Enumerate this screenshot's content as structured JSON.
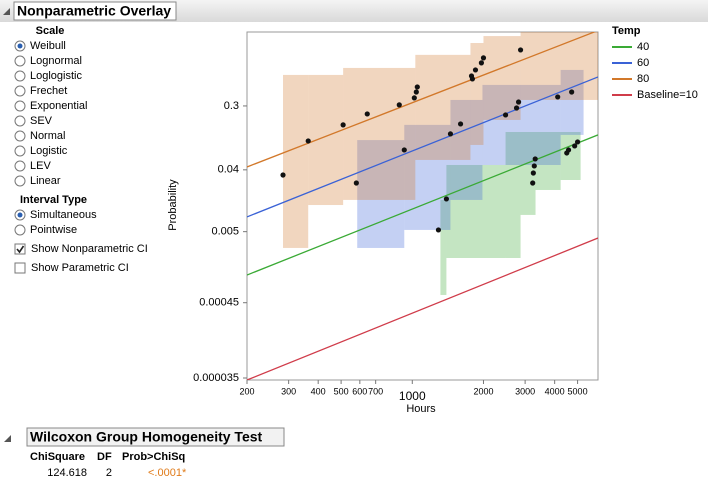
{
  "header": {
    "title": "Nonparametric Overlay"
  },
  "scale": {
    "title": "Scale",
    "options": [
      "Weibull",
      "Lognormal",
      "Loglogistic",
      "Frechet",
      "Exponential",
      "SEV",
      "Normal",
      "Logistic",
      "LEV",
      "Linear"
    ],
    "selected": 0
  },
  "interval_type": {
    "title": "Interval Type",
    "options": [
      "Simultaneous",
      "Pointwise"
    ],
    "selected": 0
  },
  "checkboxes": [
    {
      "label": "Show Nonparametric CI",
      "checked": true
    },
    {
      "label": "Show Parametric CI",
      "checked": false
    }
  ],
  "chart_data": {
    "type": "probability",
    "x_label": "Hours",
    "y_label": "Probability",
    "legend_title": "Temp",
    "xscale": "log",
    "yscale": "weibull",
    "xlim": [
      200,
      6100
    ],
    "ylim": [
      3.27e-05,
      0.9875
    ],
    "xticks": [
      200,
      300,
      400,
      500,
      600,
      700,
      1000,
      2000,
      3000,
      4000,
      5000
    ],
    "yticks": [
      3.5e-05,
      0.00045,
      0.005,
      0.04,
      0.3
    ],
    "series": [
      {
        "name": "40",
        "color": "#3aaa35",
        "points": {
          "x": [
            1290,
            3230,
            3250,
            3280,
            3310,
            4500,
            4580,
            4860,
            5000
          ],
          "y": [
            0.0053,
            0.0258,
            0.036,
            0.0455,
            0.0574,
            0.0698,
            0.077,
            0.0877,
            0.0998
          ]
        },
        "fit": {
          "x": [
            200,
            6100
          ],
          "y": [
            0.00115,
            0.125
          ]
        },
        "band": {
          "edges": [
            1315,
            1394,
            2480,
            2870,
            3320,
            4240,
            5150
          ],
          "lower": [
            0.000585,
            0.00205,
            0.00205,
            0.0088,
            0.0204,
            0.0285
          ],
          "upper": [
            0.0146,
            0.047,
            0.137,
            0.137,
            0.137,
            0.137
          ]
        }
      },
      {
        "name": "60",
        "color": "#3a62d6",
        "points": {
          "x": [
            580,
            925,
            1394,
            1450,
            1600,
            2480,
            2760,
            2815,
            4120,
            4720
          ],
          "y": [
            0.0258,
            0.077,
            0.0151,
            0.129,
            0.176,
            0.231,
            0.283,
            0.335,
            0.384,
            0.436
          ]
        },
        "fit": {
          "x": [
            200,
            6100
          ],
          "y": [
            0.00823,
            0.615
          ]
        },
        "band": {
          "edges": [
            585,
            925,
            1450,
            1980,
            4240,
            5300
          ],
          "lower": [
            0.00288,
            0.0053,
            0.0146,
            0.047,
            0.125
          ],
          "upper": [
            0.106,
            0.171,
            0.354,
            0.517,
            0.702
          ]
        }
      },
      {
        "name": "80",
        "color": "#d2782a",
        "points": {
          "x": [
            284,
            363,
            510,
            645,
            881,
            1020,
            1040,
            1050,
            1780,
            1796,
            1850,
            1960,
            2000,
            2870
          ],
          "y": [
            0.0337,
            0.103,
            0.171,
            0.238,
            0.309,
            0.374,
            0.436,
            0.493,
            0.627,
            0.59,
            0.702,
            0.785,
            0.838,
            0.908
          ]
        },
        "fit": {
          "x": [
            200,
            6100
          ],
          "y": [
            0.044,
            0.99
          ]
        },
        "band": {
          "edges": [
            284,
            363,
            510,
            1030,
            1762,
            2000,
            2870,
            6100
          ],
          "lower": [
            0.00288,
            0.0123,
            0.0146,
            0.0555,
            0.0906,
            0.199,
            0.354
          ],
          "upper": [
            0.64,
            0.64,
            0.726,
            0.867,
            0.951,
            0.978,
            0.9875
          ]
        }
      },
      {
        "name": "Baseline=10",
        "color": "#d03c4a",
        "fit": {
          "x": [
            200,
            6100
          ],
          "y": [
            3.27e-05,
            0.00403
          ]
        }
      }
    ]
  },
  "test": {
    "title": "Wilcoxon Group Homogeneity Test",
    "columns": [
      "ChiSquare",
      "DF",
      "Prob>ChiSq"
    ],
    "row": [
      124.618,
      2,
      "<.0001*"
    ]
  }
}
